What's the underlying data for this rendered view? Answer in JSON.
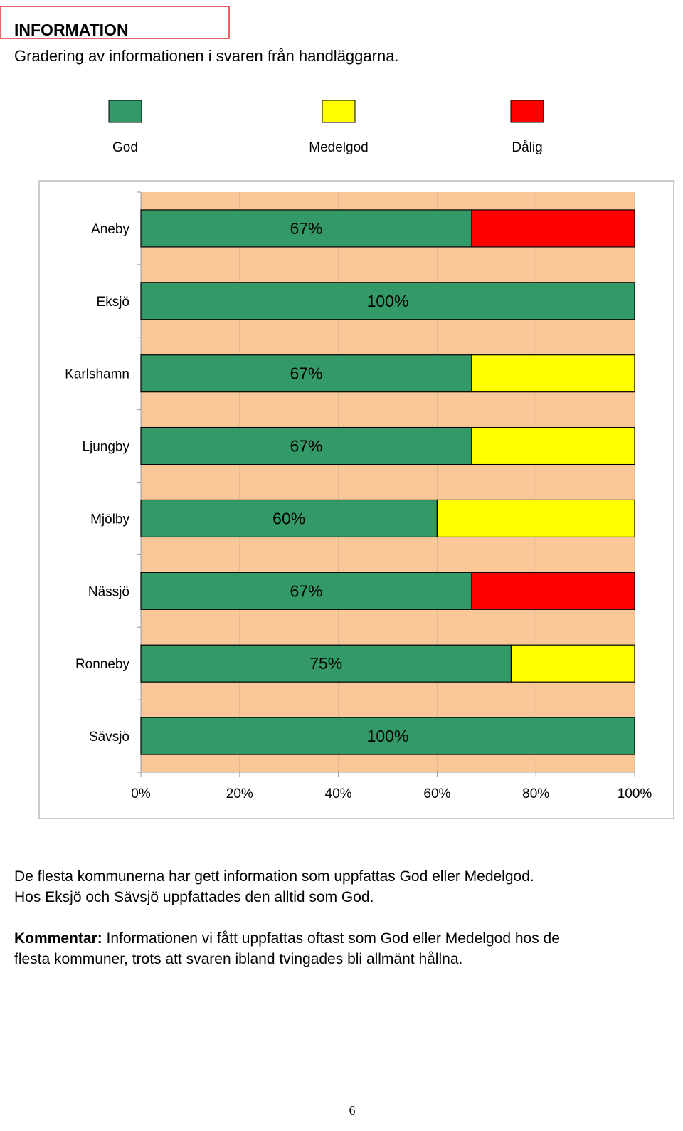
{
  "header": {
    "title": "INFORMATION",
    "subtitle": "Gradering av informationen i svaren från handläggarna."
  },
  "chart_data": {
    "type": "stacked_bar",
    "orientation": "horizontal",
    "categories": [
      "Aneby",
      "Eksjö",
      "Karlshamn",
      "Ljungby",
      "Mjölby",
      "Nässjö",
      "Ronneby",
      "Sävsjö"
    ],
    "series": [
      {
        "name": "God",
        "color": "#339966",
        "values": [
          67,
          100,
          67,
          67,
          60,
          67,
          75,
          100
        ],
        "value_labels": [
          "67%",
          "100%",
          "67%",
          "67%",
          "60%",
          "67%",
          "75%",
          "100%"
        ]
      },
      {
        "name": "Medelgod",
        "color": "#ffff00",
        "values": [
          0,
          0,
          33,
          33,
          40,
          0,
          25,
          0
        ]
      },
      {
        "name": "Dålig",
        "color": "#ff0000",
        "values": [
          33,
          0,
          0,
          0,
          0,
          33,
          0,
          0
        ]
      }
    ],
    "xlim": [
      0,
      100
    ],
    "xticks": [
      {
        "value": 0,
        "label": "0%"
      },
      {
        "value": 20,
        "label": "20%"
      },
      {
        "value": 40,
        "label": "40%"
      },
      {
        "value": 60,
        "label": "60%"
      },
      {
        "value": 80,
        "label": "80%"
      },
      {
        "value": 100,
        "label": "100%"
      }
    ],
    "grid": true,
    "legend": "top"
  },
  "text": {
    "paragraph": [
      "De flesta kommunerna har gett information som uppfattas God eller Medelgod.",
      "Hos Eksjö och Sävsjö uppfattades den alltid som God."
    ],
    "comment_label": "Kommentar:",
    "comment": [
      " Informationen vi fått uppfattas oftast som God eller Medelgod hos de",
      "flesta kommuner, trots att svaren ibland tvingades bli allmänt hållna."
    ]
  },
  "page_number": "6"
}
